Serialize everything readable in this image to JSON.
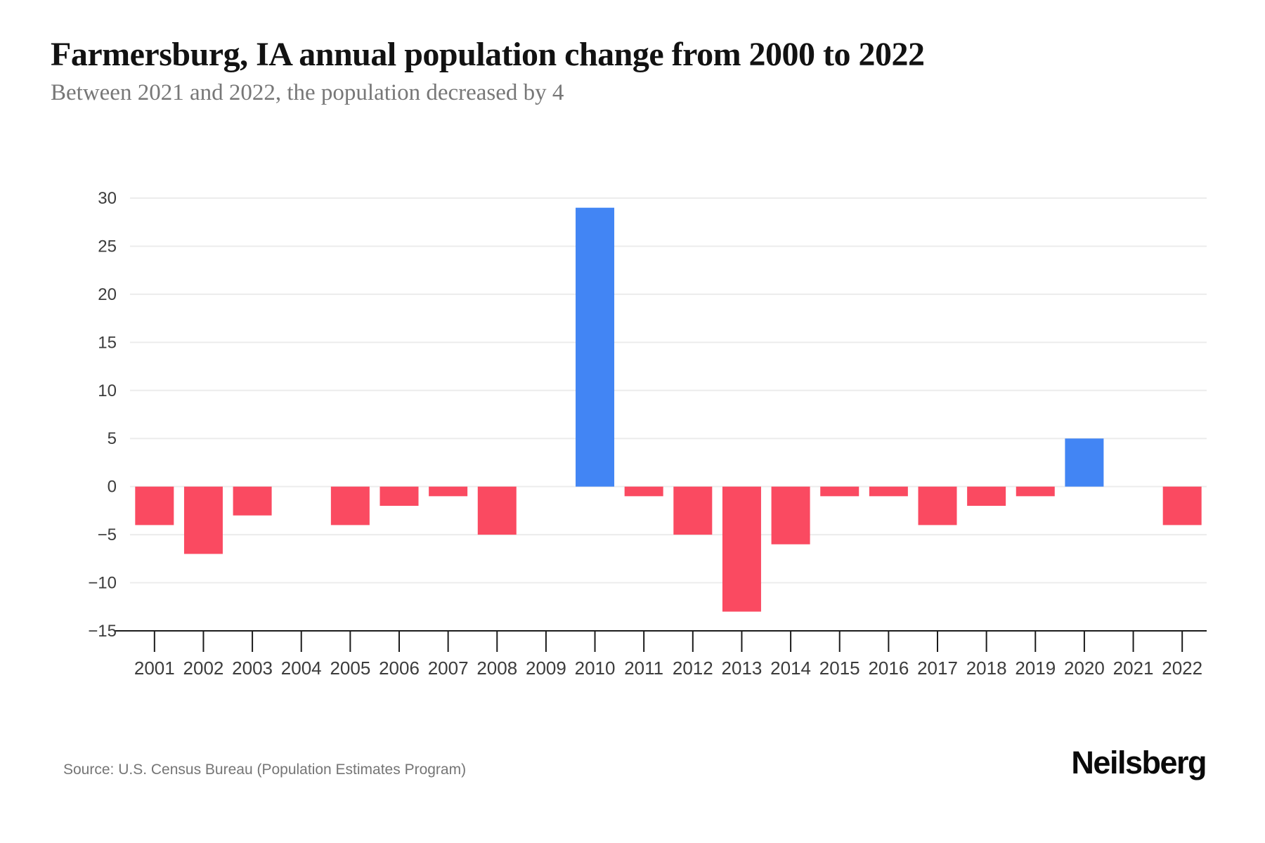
{
  "header": {
    "title": "Farmersburg, IA annual population change from 2000 to 2022",
    "subtitle": "Between 2021 and 2022, the population decreased by 4"
  },
  "footer": {
    "source": "Source: U.S. Census Bureau (Population Estimates Program)",
    "brand": "Neilsberg"
  },
  "colors": {
    "positive_bar": "#4285F4",
    "negative_bar": "#FA4A61",
    "gridline": "#ececec",
    "axis_line": "#1b1b1b",
    "tick_label": "#3c3c3c"
  },
  "chart_data": {
    "type": "bar",
    "title": "Farmersburg, IA annual population change from 2000 to 2022",
    "subtitle": "Between 2021 and 2022, the population decreased by 4",
    "xlabel": "",
    "ylabel": "",
    "categories": [
      "2001",
      "2002",
      "2003",
      "2004",
      "2005",
      "2006",
      "2007",
      "2008",
      "2009",
      "2010",
      "2011",
      "2012",
      "2013",
      "2014",
      "2015",
      "2016",
      "2017",
      "2018",
      "2019",
      "2020",
      "2021",
      "2022"
    ],
    "values": [
      -4,
      -7,
      -3,
      0,
      -4,
      -2,
      -1,
      -5,
      0,
      29,
      -1,
      -5,
      -13,
      -6,
      -1,
      -1,
      -4,
      -2,
      -1,
      5,
      0,
      -4
    ],
    "ylim": [
      -15,
      30
    ],
    "yticks": [
      30,
      25,
      20,
      15,
      10,
      5,
      0,
      -5,
      -10,
      -15
    ],
    "ytick_labels": [
      "30",
      "25",
      "20",
      "15",
      "10",
      "5",
      "0",
      "−5",
      "−10",
      "−15"
    ],
    "grid": true,
    "legend": "none",
    "positive_color": "#4285F4",
    "negative_color": "#FA4A61"
  }
}
